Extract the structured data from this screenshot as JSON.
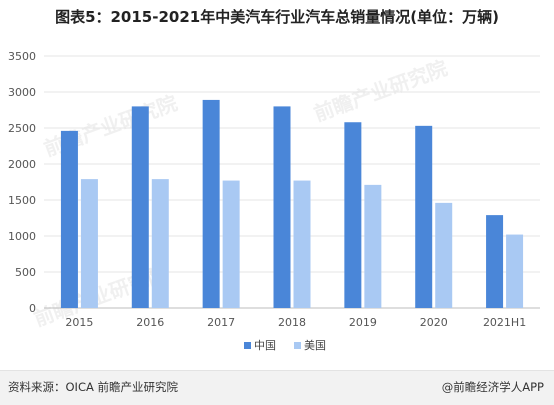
{
  "title": "图表5：2015-2021年中美汽车行业汽车总销量情况(单位：万辆)",
  "footer": {
    "source": "资料来源：OICA 前瞻产业研究院",
    "brand": "@前瞻经济学人APP"
  },
  "watermark": "前瞻产业研究院",
  "colors": {
    "china": "#4a86d8",
    "usa": "#a9c9f3"
  },
  "chart_data": {
    "type": "bar",
    "categories": [
      "2015",
      "2016",
      "2017",
      "2018",
      "2019",
      "2020",
      "2021H1"
    ],
    "series": [
      {
        "name": "中国",
        "values": [
          2460,
          2800,
          2890,
          2800,
          2580,
          2530,
          1290
        ]
      },
      {
        "name": "美国",
        "values": [
          1790,
          1790,
          1770,
          1770,
          1710,
          1460,
          1020
        ]
      }
    ],
    "yticks": [
      "0",
      "500",
      "1000",
      "1500",
      "2000",
      "2500",
      "3000",
      "3500"
    ],
    "ylim": [
      0,
      3500
    ],
    "grid": true,
    "legend": "bottom-center"
  }
}
